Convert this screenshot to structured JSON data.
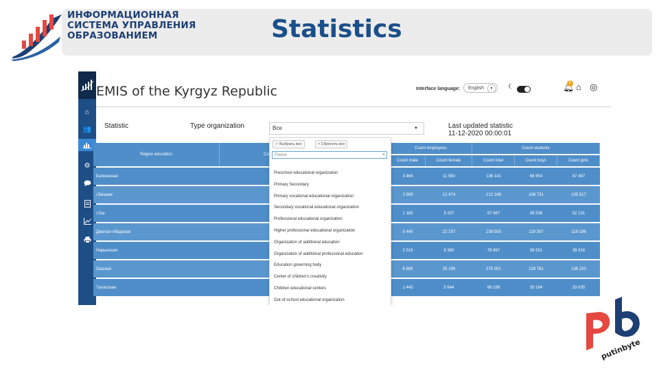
{
  "slide": {
    "logo_lines": [
      "ИНФОРМАЦИОННАЯ",
      "СИСТЕМА УПРАВЛЕНИЯ",
      "ОБРАЗОВАНИЕМ"
    ],
    "title": "Statistics",
    "brand_text": "putinbyte"
  },
  "app": {
    "title": "EMIS of the Kyrgyz Republic",
    "interface_language_label": "Interface language:",
    "language_value": "English",
    "notification_count": "0",
    "sidebar_icons": [
      "bank-icon",
      "users-icon",
      "chart-icon",
      "settings-icon",
      "chat-icon",
      "document-icon",
      "line-chart-icon",
      "print-icon"
    ],
    "active_sidebar_index": 2
  },
  "filters": {
    "statistic_label": "Statistic",
    "type_org_label": "Type organization",
    "type_org_value": "Все",
    "last_updated_label": "Last updated statistic",
    "last_updated_value": "11-12-2020 00:00:01"
  },
  "dropdown": {
    "select_all": "✓ Выбрать все",
    "reset_all": "× Сбросить все",
    "search_placeholder": "Поиск",
    "clear_symbol": "×",
    "options": [
      "Preschool educational organization",
      "Primary Secondary",
      "Primary vocational educational organization",
      "Secondary vocational educational organization",
      "Professional educational organization",
      "Higher professional educational organization",
      "Organization of additional education",
      "Organization of additional professional education",
      "Education governing body",
      "Center of children's creativity",
      "Children educational centers",
      "Out-of-school educational organization"
    ]
  },
  "table": {
    "group_headers": {
      "region": "Region education",
      "count_org": "Co",
      "count_employees": "Count employees",
      "count_students": "Count students"
    },
    "sub_headers": [
      "Count male",
      "Count female",
      "Count total",
      "Count boys",
      "Count girls"
    ],
    "rows": [
      {
        "region": "Баткенская",
        "male": "3 464",
        "female": "11 560",
        "total": "136 141",
        "boys": "68 654",
        "girls": "67 487"
      },
      {
        "region": "г.Бишкек",
        "male": "2 909",
        "female": "12 474",
        "total": "212 248",
        "boys": "106 731",
        "girls": "105 517"
      },
      {
        "region": "г.Ош",
        "male": "1 183",
        "female": "5 207",
        "total": "97 667",
        "boys": "45 536",
        "girls": "52 131"
      },
      {
        "region": "Джалал-Абадская",
        "male": "5 440",
        "female": "22 157",
        "total": "238 503",
        "boys": "119 307",
        "girls": "119 196"
      },
      {
        "region": "Нарынская",
        "male": "2 519",
        "female": "8 360",
        "total": "78 867",
        "boys": "39 551",
        "girls": "39 316"
      },
      {
        "region": "Ошская",
        "male": "6 806",
        "female": "25 196",
        "total": "275 001",
        "boys": "138 781",
        "girls": "136 220"
      },
      {
        "region": "Таласская",
        "male": "1 443",
        "female": "5 644",
        "total": "66 199",
        "boys": "33 164",
        "girls": "33 035"
      }
    ]
  }
}
